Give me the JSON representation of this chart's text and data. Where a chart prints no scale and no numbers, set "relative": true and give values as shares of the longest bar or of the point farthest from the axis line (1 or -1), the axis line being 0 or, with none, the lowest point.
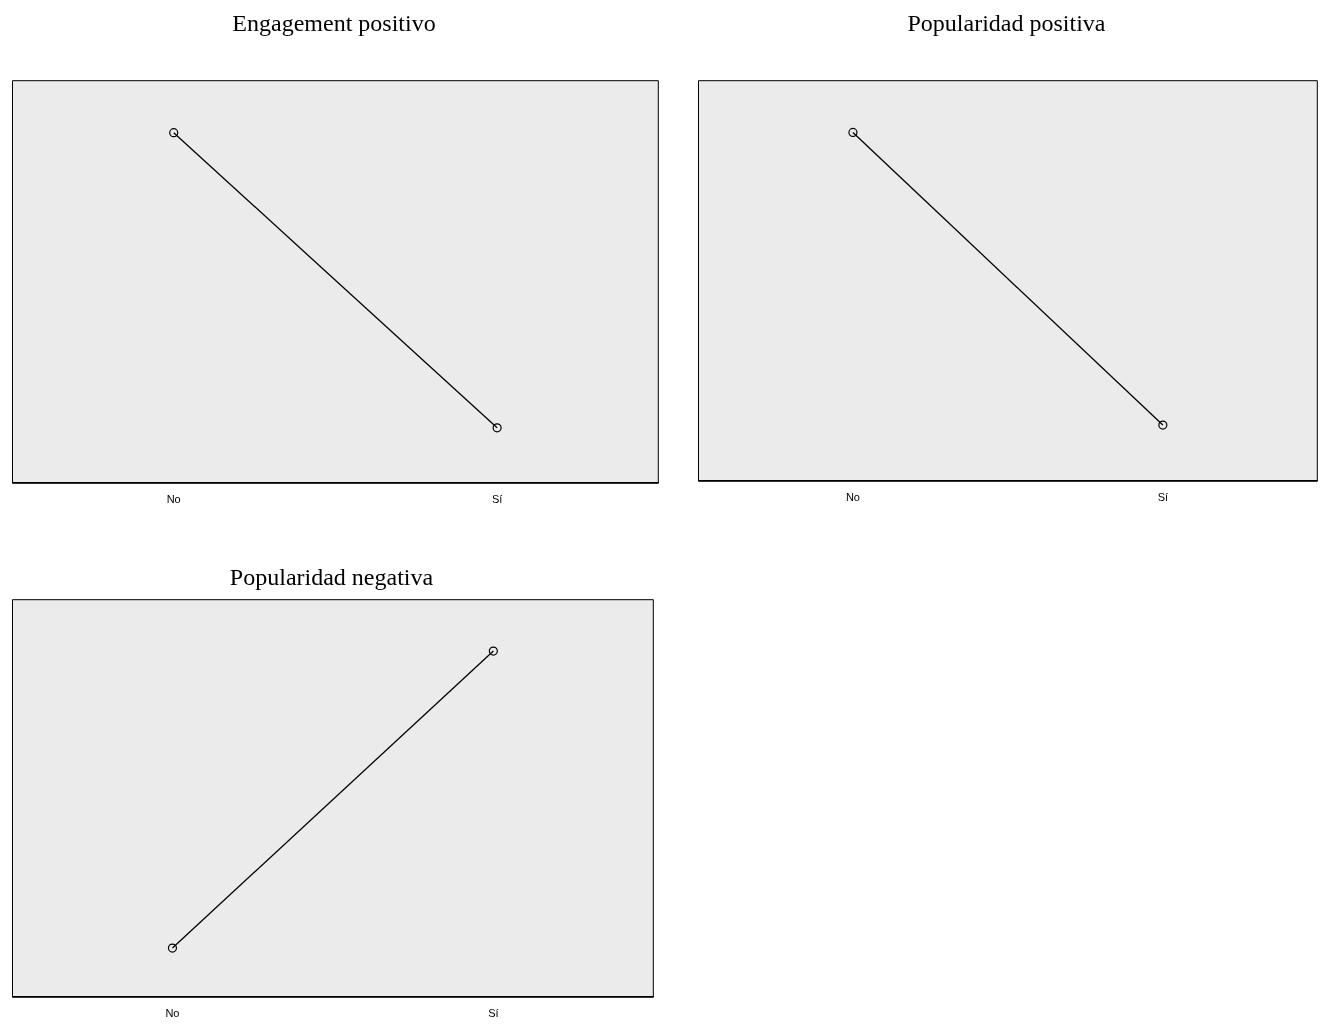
{
  "chart_data": [
    {
      "type": "line",
      "title": "Engagement positivo",
      "categories": [
        "No",
        "Sí"
      ],
      "series": [
        {
          "color": "#000000",
          "values": [
            1,
            0.157
          ]
        }
      ],
      "relative": true,
      "marker": "circle",
      "line_style": "solid",
      "grid": false,
      "legend": false,
      "tick_labels": "x"
    },
    {
      "type": "line",
      "title": "Popularidad positiva",
      "categories": [
        "No",
        "Sí"
      ],
      "series": [
        {
          "color": "#000000",
          "values": [
            1,
            0.16
          ]
        }
      ],
      "relative": true,
      "marker": "circle",
      "line_style": "solid",
      "grid": false,
      "legend": false,
      "tick_labels": "x"
    },
    {
      "type": "line",
      "title": "Popularidad negativa",
      "categories": [
        "No",
        "Sí"
      ],
      "series": [
        {
          "color": "#000000",
          "values": [
            0.141,
            1
          ]
        }
      ],
      "relative": true,
      "marker": "circle",
      "line_style": "solid",
      "grid": false,
      "legend": false,
      "tick_labels": "x"
    }
  ]
}
